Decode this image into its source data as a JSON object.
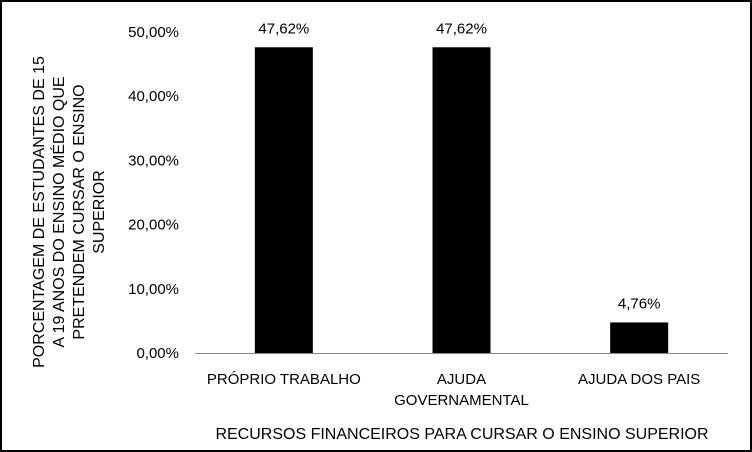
{
  "chart_data": {
    "type": "bar",
    "categories": [
      [
        "PRÓPRIO TRABALHO"
      ],
      [
        "AJUDA",
        "GOVERNAMENTAL"
      ],
      [
        "AJUDA DOS PAIS"
      ]
    ],
    "values": [
      47.62,
      47.62,
      4.76
    ],
    "data_labels": [
      "47,62%",
      "47,62%",
      "4,76%"
    ],
    "ylim": [
      0,
      50
    ],
    "yticks": [
      0,
      10,
      20,
      30,
      40,
      50
    ],
    "ytick_labels": [
      "0,00%",
      "10,00%",
      "20,00%",
      "30,00%",
      "40,00%",
      "50,00%"
    ],
    "ylabel_lines": [
      "PORCENTAGEM DE ESTUDANTES DE 15",
      "A 19 ANOS DO ENSINO MÉDIO QUE",
      "PRETENDEM CURSAR O ENSINO",
      "SUPERIOR"
    ],
    "xlabel": "RECURSOS FINANCEIROS PARA CURSAR O ENSINO SUPERIOR",
    "bar_color": "#000000",
    "grid": false,
    "legend": "none"
  }
}
